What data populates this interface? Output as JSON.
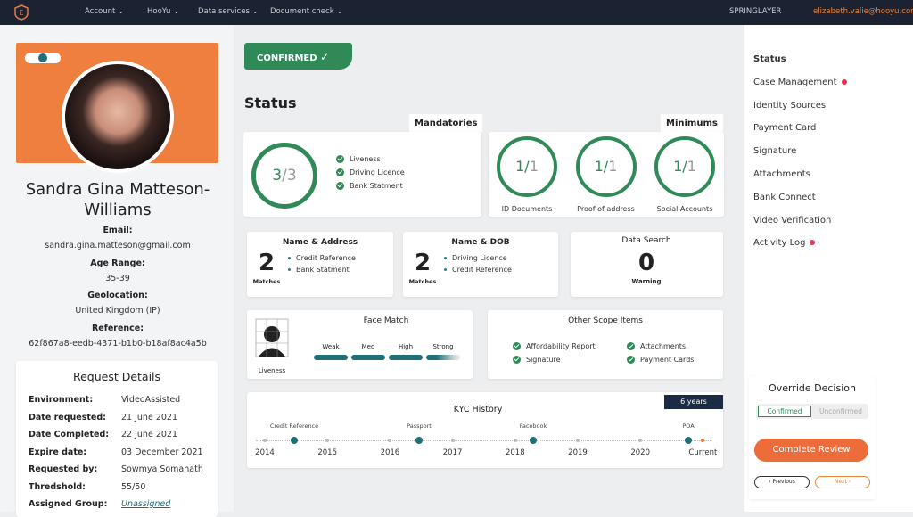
{
  "nav": {
    "menu": [
      "Account",
      "HooYu",
      "Data services",
      "Document check"
    ],
    "org": "SPRINGLAYER",
    "user": "elizabeth.valie@hooyu.com"
  },
  "profile": {
    "name": "Sandra Gina Matteson-Williams",
    "fields": [
      {
        "label": "Email:",
        "value": "sandra.gina.matteson@gmail.com"
      },
      {
        "label": "Age Range:",
        "value": "35-39"
      },
      {
        "label": "Geolocation:",
        "value": "United Kingdom (IP)"
      },
      {
        "label": "Reference:",
        "value": "62f867a8-eedb-4371-b1b0-b18af8ac4a5b"
      }
    ]
  },
  "request_details": {
    "title": "Request Details",
    "rows": [
      [
        "Environment:",
        "VideoAssisted"
      ],
      [
        "Date requested:",
        "21 June 2021"
      ],
      [
        "Date Completed:",
        "22 June 2021"
      ],
      [
        "Expire date:",
        "03 December 2021"
      ],
      [
        "Requested by:",
        "Sowmya Somanath"
      ],
      [
        "Thredshold:",
        "55/50"
      ],
      [
        "Assigned Group:",
        "Unassigned"
      ]
    ]
  },
  "status": {
    "badge": "CONFIRMED",
    "title": "Status"
  },
  "mandatories": {
    "title": "Mandatories",
    "score": 3,
    "total": 3,
    "items": [
      "Liveness",
      "Driving Licence",
      "Bank Statment"
    ]
  },
  "minimums": {
    "title": "Minimums",
    "items": [
      {
        "score": 1,
        "total": 1,
        "label": "ID Documents"
      },
      {
        "score": 1,
        "total": 1,
        "label": "Proof of address"
      },
      {
        "score": 1,
        "total": 1,
        "label": "Social Accounts"
      }
    ]
  },
  "matches": [
    {
      "title": "Name & Address",
      "count": 2,
      "caption": "Matches",
      "items": [
        "Credit Reference",
        "Bank Statment"
      ]
    },
    {
      "title": "Name & DOB",
      "count": 2,
      "caption": "Matches",
      "items": [
        "Driving Licence",
        "Credit Reference"
      ]
    }
  ],
  "data_search": {
    "title": "Data Search",
    "count": 0,
    "caption": "Warning"
  },
  "face_match": {
    "title": "Face Match",
    "caption": "Liveness",
    "levels": [
      "Weak",
      "Med",
      "High",
      "Strong"
    ]
  },
  "other_scope": {
    "title": "Other Scope Items",
    "items": [
      "Affordability Report",
      "Signature",
      "Attachments",
      "Payment Cards"
    ]
  },
  "kyc_history": {
    "title": "KYC History",
    "range": "6 years",
    "years": [
      2014,
      2015,
      2016,
      2017,
      2018,
      2019,
      2020,
      "Current"
    ],
    "events": [
      "Credit Reference",
      "Passport",
      "Facebook",
      "POA"
    ]
  },
  "sidebar": {
    "items": [
      {
        "label": "Status"
      },
      {
        "label": "Case Management",
        "alert": true
      },
      {
        "label": "Identity Sources"
      },
      {
        "label": "Payment Card"
      },
      {
        "label": "Signature"
      },
      {
        "label": "Attachments"
      },
      {
        "label": "Bank Connect"
      },
      {
        "label": "Video Verification"
      },
      {
        "label": "Activity Log",
        "alert": true
      }
    ]
  },
  "override": {
    "title": "Override Decision",
    "options": [
      "Confirmed",
      "Unconfirmed"
    ],
    "button": "Complete Review",
    "previous": "Previous",
    "next": "Next"
  }
}
